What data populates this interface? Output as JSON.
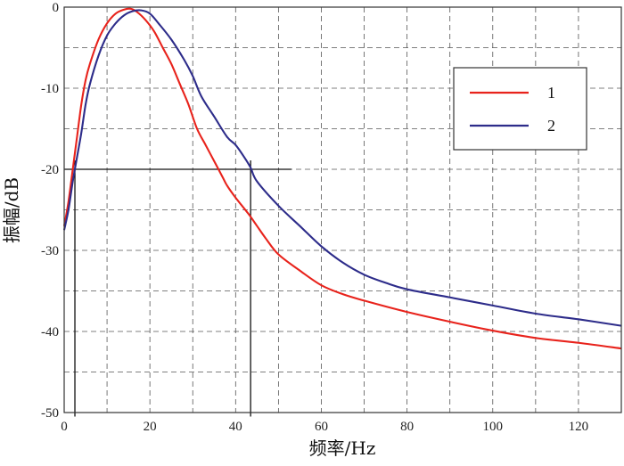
{
  "chart_data": {
    "type": "line",
    "xlabel": "频率/Hz",
    "ylabel": "振幅/dB",
    "xlim": [
      0,
      130
    ],
    "ylim": [
      -50,
      0
    ],
    "xticks": [
      0,
      20,
      40,
      60,
      80,
      100,
      120
    ],
    "yticks": [
      0,
      -10,
      -20,
      -30,
      -40,
      -50
    ],
    "grid": true,
    "legend_position": "top-right",
    "series": [
      {
        "name": "1",
        "color": "#e8231c",
        "x": [
          0,
          1,
          2,
          3,
          4,
          5,
          6,
          8,
          10,
          12,
          14,
          15.5,
          17,
          19,
          21,
          23,
          25,
          27,
          29,
          31,
          33,
          35,
          37,
          38,
          40,
          43,
          45,
          47,
          50,
          55,
          60,
          65,
          70,
          80,
          90,
          100,
          110,
          120,
          130
        ],
        "y": [
          -27,
          -24,
          -20,
          -16,
          -12,
          -9,
          -7,
          -4,
          -2,
          -0.8,
          -0.3,
          -0.2,
          -0.6,
          -1.6,
          -3,
          -5,
          -7,
          -9.5,
          -12,
          -15,
          -17,
          -19,
          -21,
          -22,
          -23.5,
          -25.5,
          -27,
          -28.5,
          -30.5,
          -32.5,
          -34.3,
          -35.4,
          -36.2,
          -37.6,
          -38.8,
          -39.9,
          -40.8,
          -41.4,
          -42.1
        ]
      },
      {
        "name": "2",
        "color": "#2d2c8a",
        "x": [
          0,
          1,
          2,
          3,
          4,
          5,
          6,
          8,
          10,
          12,
          14,
          16,
          18,
          20,
          22,
          25,
          28,
          30,
          32,
          35,
          38,
          40,
          42,
          43.5,
          45,
          50,
          55,
          60,
          65,
          70,
          75,
          80,
          90,
          100,
          110,
          120,
          130
        ],
        "y": [
          -27.5,
          -25,
          -21.5,
          -18.5,
          -15.5,
          -12,
          -9.5,
          -6,
          -3.5,
          -2,
          -1,
          -0.5,
          -0.4,
          -0.8,
          -2,
          -4,
          -6.5,
          -8.5,
          -11,
          -13.5,
          -16,
          -17,
          -18.5,
          -19.8,
          -21.5,
          -24.5,
          -27,
          -29.5,
          -31.5,
          -33,
          -34,
          -34.8,
          -35.8,
          -36.8,
          -37.8,
          -38.5,
          -39.3
        ]
      }
    ],
    "annotations": {
      "threshold_y": -20,
      "threshold_x_end": 53,
      "vertical_markers_x": [
        2.5,
        43.5
      ],
      "marker_bottom_y": -50.5
    }
  }
}
